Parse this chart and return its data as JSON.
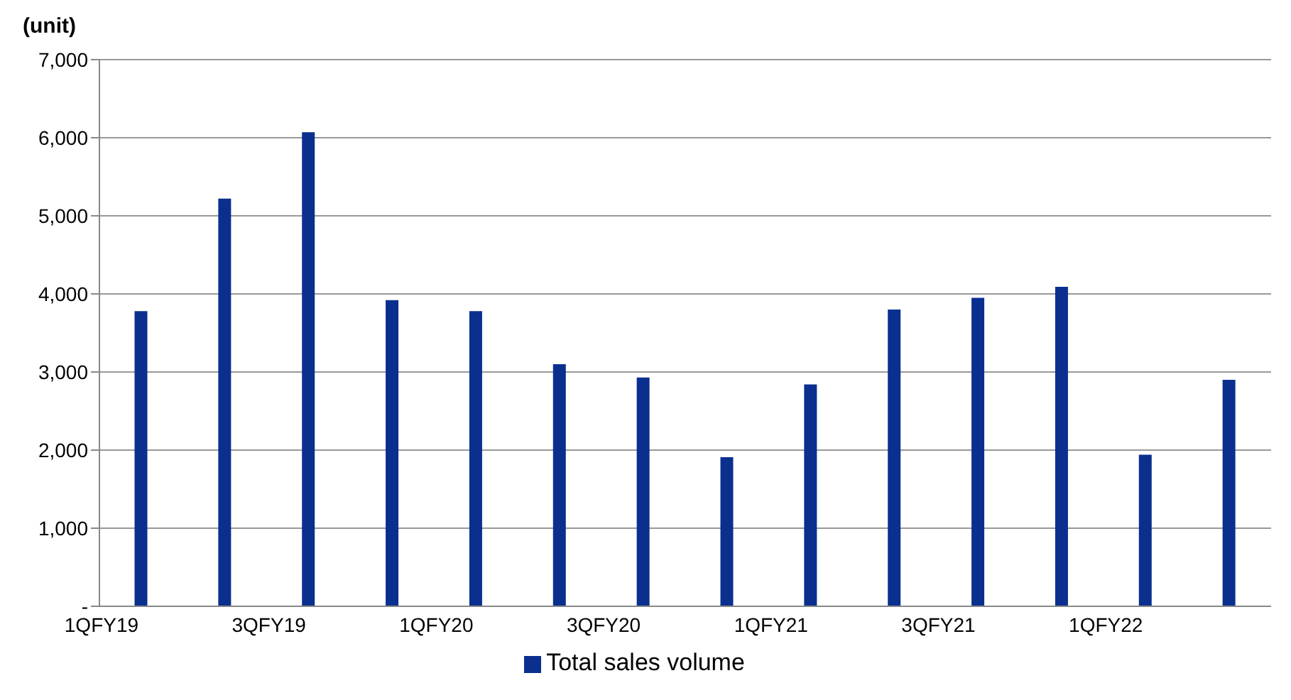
{
  "chart_data": {
    "type": "bar",
    "ylabel": "(unit)",
    "categories": [
      "1QFY19",
      null,
      "3QFY19",
      null,
      "1QFY20",
      null,
      "3QFY20",
      null,
      "1QFY21",
      null,
      "3QFY21",
      null,
      "1QFY22",
      null
    ],
    "series": [
      {
        "name": "Total sales volume",
        "color": "#0a2f8e",
        "values": [
          3780,
          5220,
          6070,
          3920,
          3780,
          3100,
          2930,
          1910,
          2840,
          3800,
          3950,
          4090,
          1940,
          2900
        ]
      }
    ],
    "ylim": [
      0,
      7000
    ],
    "yticks": [
      {
        "value": 0,
        "label": "-"
      },
      {
        "value": 1000,
        "label": "1,000"
      },
      {
        "value": 2000,
        "label": "2,000"
      },
      {
        "value": 3000,
        "label": "3,000"
      },
      {
        "value": 4000,
        "label": "4,000"
      },
      {
        "value": 5000,
        "label": "5,000"
      },
      {
        "value": 6000,
        "label": "6,000"
      },
      {
        "value": 7000,
        "label": "7,000"
      }
    ],
    "grid": "y",
    "legend": "bottom"
  }
}
